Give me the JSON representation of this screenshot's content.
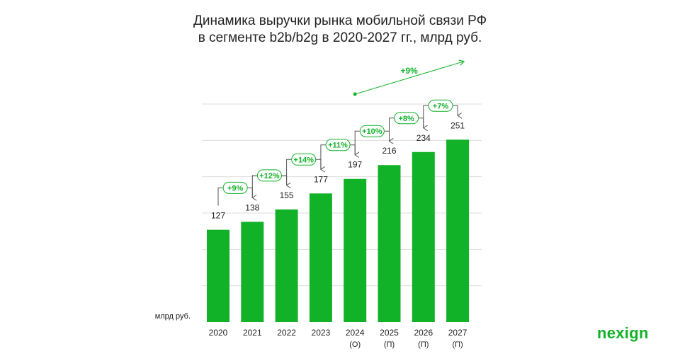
{
  "title": {
    "line1": "Динамика выручки рынка мобильной связи РФ",
    "line2": "в сегменте b2b/b2g в 2020-2027 гг., млрд руб."
  },
  "brand": {
    "logo": "nexign"
  },
  "colors": {
    "bar": "#12b228",
    "growth_label": "#12b228",
    "grid": "#dddddd",
    "text": "#222222"
  },
  "chart_data": {
    "type": "bar",
    "title": "Динамика выручки рынка мобильной связи РФ в сегменте b2b/b2g в 2020-2027 гг., млрд руб.",
    "ylabel": "млрд руб.",
    "xlabel": "",
    "categories": [
      "2020",
      "2021",
      "2022",
      "2023",
      "2024",
      "2025",
      "2026",
      "2027"
    ],
    "category_notes": [
      "",
      "",
      "",
      "",
      "(О)",
      "(П)",
      "(П)",
      "(П)"
    ],
    "values": [
      127,
      138,
      155,
      177,
      197,
      216,
      234,
      251
    ],
    "ylim": [
      0,
      300
    ],
    "grid": true,
    "yoy_growth": [
      "+9%",
      "+12%",
      "+14%",
      "+11%",
      "+10%",
      "+8%",
      "+7%"
    ],
    "cagr_annotation": {
      "label": "+9%",
      "from": "2024",
      "to": "2027"
    }
  }
}
